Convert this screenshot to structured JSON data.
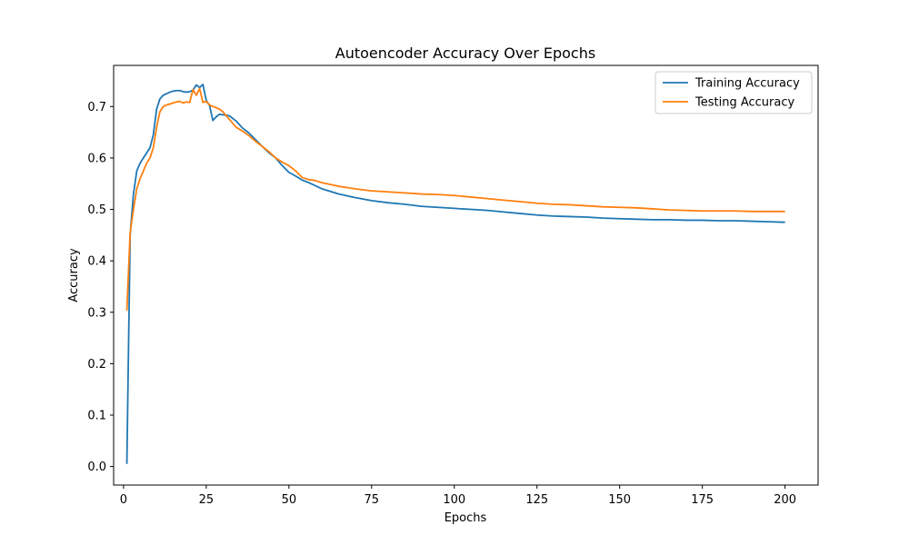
{
  "chart_data": {
    "type": "line",
    "title": "Autoencoder Accuracy Over Epochs",
    "xlabel": "Epochs",
    "ylabel": "Accuracy",
    "xlim": [
      -3,
      210
    ],
    "ylim": [
      -0.036,
      0.78
    ],
    "xticks": [
      0,
      25,
      50,
      75,
      100,
      125,
      150,
      175,
      200
    ],
    "yticks": [
      0.0,
      0.1,
      0.2,
      0.3,
      0.4,
      0.5,
      0.6,
      0.7
    ],
    "ytick_labels": [
      "0.0",
      "0.1",
      "0.2",
      "0.3",
      "0.4",
      "0.5",
      "0.6",
      "0.7"
    ],
    "grid": false,
    "legend_position": "top-right",
    "x": [
      1,
      2,
      3,
      4,
      5,
      6,
      7,
      8,
      9,
      10,
      11,
      12,
      13,
      14,
      15,
      16,
      17,
      18,
      19,
      20,
      21,
      22,
      23,
      24,
      25,
      26,
      27,
      28,
      29,
      30,
      32,
      34,
      36,
      38,
      40,
      42,
      44,
      46,
      48,
      50,
      52,
      54,
      56,
      58,
      60,
      65,
      70,
      75,
      80,
      85,
      90,
      95,
      100,
      105,
      110,
      115,
      120,
      125,
      130,
      135,
      140,
      145,
      150,
      155,
      160,
      165,
      170,
      175,
      180,
      185,
      190,
      195,
      200
    ],
    "series": [
      {
        "name": "Training Accuracy",
        "color": "#1f77b4",
        "values": [
          0.005,
          0.45,
          0.53,
          0.575,
          0.59,
          0.6,
          0.61,
          0.62,
          0.645,
          0.695,
          0.715,
          0.722,
          0.725,
          0.728,
          0.73,
          0.731,
          0.731,
          0.729,
          0.728,
          0.729,
          0.732,
          0.742,
          0.737,
          0.743,
          0.712,
          0.702,
          0.673,
          0.68,
          0.685,
          0.684,
          0.682,
          0.672,
          0.658,
          0.648,
          0.635,
          0.622,
          0.61,
          0.6,
          0.585,
          0.572,
          0.565,
          0.557,
          0.552,
          0.546,
          0.54,
          0.53,
          0.523,
          0.517,
          0.513,
          0.51,
          0.506,
          0.504,
          0.502,
          0.5,
          0.498,
          0.495,
          0.492,
          0.489,
          0.487,
          0.486,
          0.485,
          0.483,
          0.482,
          0.481,
          0.48,
          0.48,
          0.479,
          0.479,
          0.478,
          0.478,
          0.477,
          0.476,
          0.475
        ]
      },
      {
        "name": "Testing Accuracy",
        "color": "#ff7f0e",
        "values": [
          0.303,
          0.455,
          0.5,
          0.54,
          0.56,
          0.575,
          0.59,
          0.6,
          0.62,
          0.66,
          0.69,
          0.7,
          0.703,
          0.705,
          0.707,
          0.709,
          0.71,
          0.707,
          0.709,
          0.708,
          0.733,
          0.722,
          0.735,
          0.708,
          0.71,
          0.703,
          0.7,
          0.698,
          0.695,
          0.69,
          0.675,
          0.66,
          0.652,
          0.643,
          0.632,
          0.622,
          0.612,
          0.6,
          0.592,
          0.585,
          0.575,
          0.562,
          0.558,
          0.556,
          0.552,
          0.545,
          0.54,
          0.536,
          0.534,
          0.532,
          0.53,
          0.529,
          0.527,
          0.524,
          0.521,
          0.518,
          0.515,
          0.512,
          0.51,
          0.509,
          0.507,
          0.505,
          0.504,
          0.503,
          0.501,
          0.499,
          0.498,
          0.497,
          0.497,
          0.497,
          0.496,
          0.496,
          0.496
        ]
      }
    ]
  }
}
